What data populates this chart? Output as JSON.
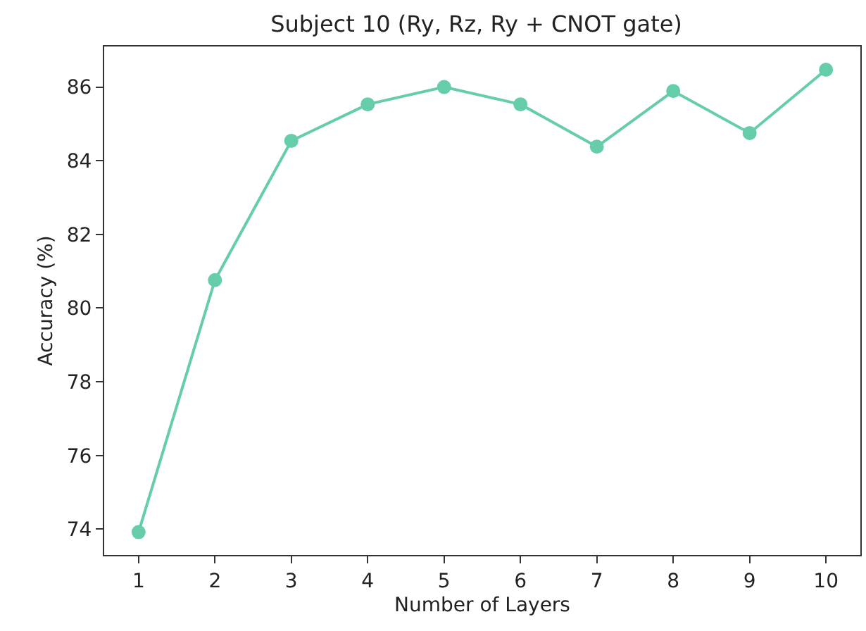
{
  "chart_data": {
    "type": "line",
    "title": "Subject 10 (Ry, Rz, Ry + CNOT gate)",
    "xlabel": "Number of Layers",
    "ylabel": "Accuracy (%)",
    "x": [
      1,
      2,
      3,
      4,
      5,
      6,
      7,
      8,
      9,
      10
    ],
    "series": [
      {
        "color": "#66cdaa",
        "values": [
          73.92,
          80.76,
          84.54,
          85.53,
          86.0,
          85.53,
          84.38,
          85.89,
          84.75,
          86.47
        ]
      }
    ],
    "xlim": [
      0.55,
      10.45
    ],
    "ylim": [
      73.3,
      87.1
    ],
    "xticks": [
      1,
      2,
      3,
      4,
      5,
      6,
      7,
      8,
      9,
      10
    ],
    "yticks": [
      74,
      76,
      78,
      80,
      82,
      84,
      86
    ],
    "marker": "circle",
    "line_style": "solid",
    "legend": false
  }
}
